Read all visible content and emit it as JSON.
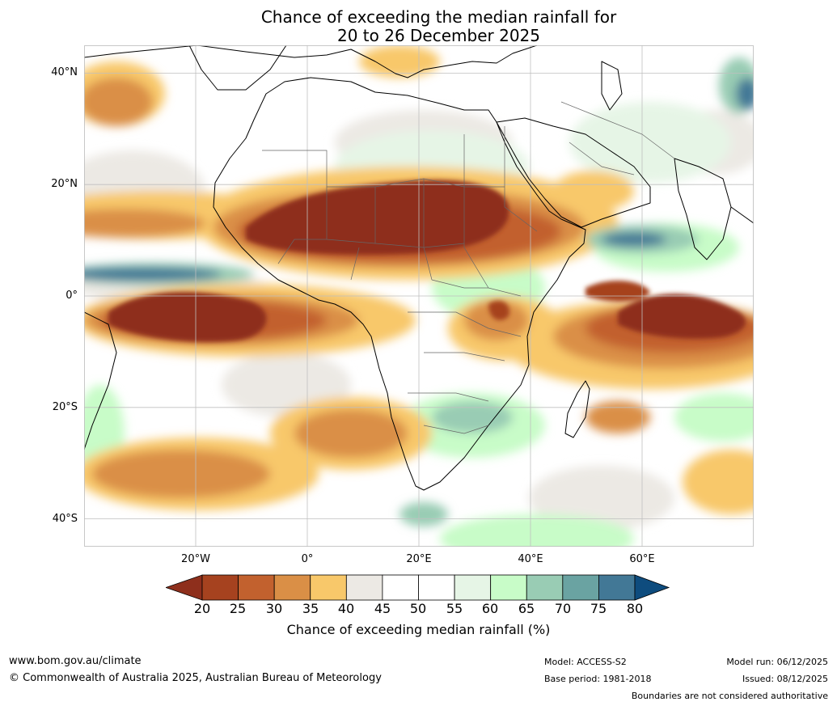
{
  "title": {
    "line1": "Chance of exceeding the median rainfall for",
    "line2": "20 to 26 December 2025"
  },
  "map": {
    "extent": {
      "lon": [
        -40,
        80
      ],
      "lat": [
        -45,
        45
      ]
    },
    "lat_ticks": [
      {
        "label": "40°N",
        "value": 40
      },
      {
        "label": "20°N",
        "value": 20
      },
      {
        "label": "0°",
        "value": 0
      },
      {
        "label": "20°S",
        "value": -20
      },
      {
        "label": "40°S",
        "value": -40
      }
    ],
    "lon_ticks": [
      {
        "label": "20°W",
        "value": -20
      },
      {
        "label": "0°",
        "value": 0
      },
      {
        "label": "20°E",
        "value": 20
      },
      {
        "label": "40°E",
        "value": 40
      },
      {
        "label": "60°E",
        "value": 60
      }
    ],
    "colors": {
      "c15": "#8e2f1c",
      "c20": "#a6421f",
      "c25": "#c2612e",
      "c30": "#da8f46",
      "c35": "#f8c86a",
      "c40": "#ece9e4",
      "c45": "#ffffff",
      "c50": "#ffffff",
      "c55": "#e6f5e6",
      "c60": "#c8fcc8",
      "c65": "#99ccb4",
      "c70": "#6aa3a2",
      "c75": "#427896",
      "c80": "#0e4c7e"
    }
  },
  "colorbar": {
    "ticks": [
      "20",
      "25",
      "30",
      "35",
      "40",
      "45",
      "50",
      "55",
      "60",
      "65",
      "70",
      "75",
      "80"
    ],
    "label": "Chance of exceeding median rainfall (%)"
  },
  "footer": {
    "website": "www.bom.gov.au/climate",
    "copyright": "© Commonwealth of Australia 2025, Australian Bureau of Meteorology",
    "model": "Model: ACCESS-S2",
    "base_period": "Base period: 1981-2018",
    "model_run": "Model run: 06/12/2025",
    "issued": "Issued: 08/12/2025",
    "disclaimer": "Boundaries are not considered authoritative"
  }
}
